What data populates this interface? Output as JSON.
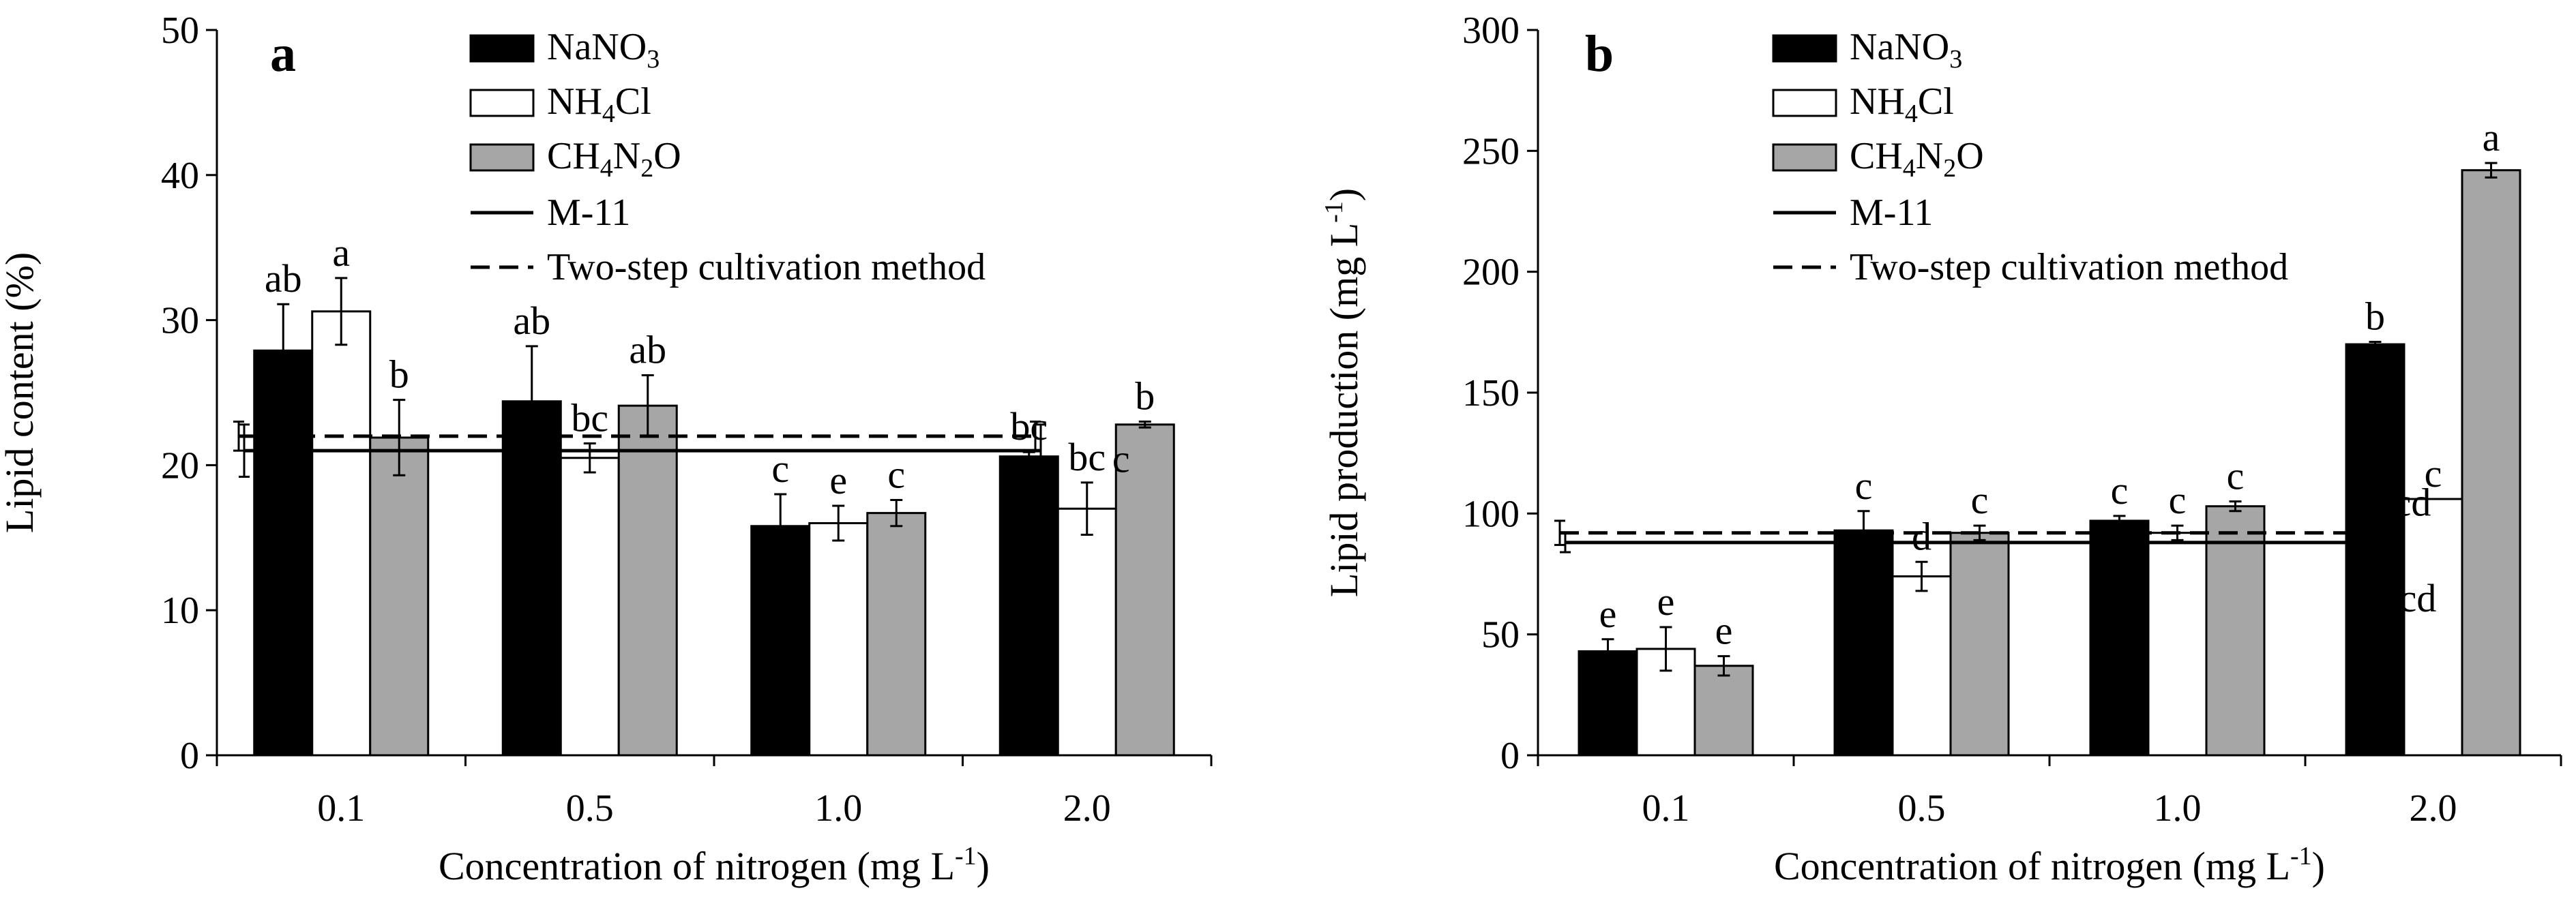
{
  "chart_data": [
    {
      "type": "bar",
      "panel_label": "a",
      "categories": [
        "0.1",
        "0.5",
        "1.0",
        "2.0"
      ],
      "series": [
        {
          "name": "NaNO₃",
          "legend_main": "NaNO",
          "legend_sub": [
            "3"
          ],
          "legend_rest": [
            "",
            ""
          ],
          "color": "#000000",
          "values": [
            27.9,
            24.4,
            15.8,
            20.6
          ],
          "errors": [
            3.2,
            3.8,
            2.2,
            0.3
          ],
          "letters": [
            "ab",
            "ab",
            "c",
            "bc"
          ]
        },
        {
          "name": "NH₄Cl",
          "legend_main": "NH",
          "legend_sub": [
            "4"
          ],
          "legend_rest": [
            "Cl",
            ""
          ],
          "color": "#ffffff",
          "values": [
            30.6,
            20.5,
            16.0,
            17.0
          ],
          "errors": [
            2.3,
            1.0,
            1.2,
            1.8
          ],
          "letters": [
            "a",
            "bc",
            "e",
            "bc"
          ]
        },
        {
          "name": "CH₄N₂O",
          "legend_main": "CH",
          "legend_sub": [
            "4",
            "2"
          ],
          "legend_rest": [
            "N",
            "O"
          ],
          "color": "#a6a6a6",
          "values": [
            21.9,
            24.1,
            16.7,
            22.8
          ],
          "errors": [
            2.6,
            2.1,
            0.9,
            0.2
          ],
          "letters": [
            "b",
            "ab",
            "c",
            "b"
          ]
        }
      ],
      "reference_lines": [
        {
          "name": "M-11",
          "value": 21.0,
          "error": 1.8,
          "style": "solid",
          "letter": ""
        },
        {
          "name": "Two-step cultivation method",
          "value": 22.0,
          "error": 1.0,
          "style": "dashed",
          "letter": ""
        }
      ],
      "extra_labels": [
        "c"
      ],
      "title": "",
      "xlabel_main": "Concentration of nitrogen (mg L",
      "xlabel_sup": "-1",
      "xlabel_end": ")",
      "ylabel_main": "Lipid content (%)",
      "ylabel_sup": "",
      "ylabel_end": "",
      "ylim": [
        0,
        50
      ],
      "yticks": [
        0,
        10,
        20,
        30,
        40,
        50
      ]
    },
    {
      "type": "bar",
      "panel_label": "b",
      "categories": [
        "0.1",
        "0.5",
        "1.0",
        "2.0"
      ],
      "series": [
        {
          "name": "NaNO₃",
          "legend_main": "NaNO",
          "legend_sub": [
            "3"
          ],
          "legend_rest": [
            "",
            ""
          ],
          "color": "#000000",
          "values": [
            43,
            93,
            97,
            170
          ],
          "errors": [
            5,
            8,
            2,
            1
          ],
          "letters": [
            "e",
            "c",
            "c",
            "b"
          ]
        },
        {
          "name": "NH₄Cl",
          "legend_main": "NH",
          "legend_sub": [
            "4"
          ],
          "legend_rest": [
            "Cl",
            ""
          ],
          "color": "#ffffff",
          "values": [
            44,
            74,
            92,
            106
          ],
          "errors": [
            9,
            6,
            3,
            0
          ],
          "letters": [
            "e",
            "d",
            "c",
            "c"
          ]
        },
        {
          "name": "CH₄N₂O",
          "legend_main": "CH",
          "legend_sub": [
            "4",
            "2"
          ],
          "legend_rest": [
            "N",
            "O"
          ],
          "color": "#a6a6a6",
          "values": [
            37,
            92,
            103,
            242
          ],
          "errors": [
            4,
            3,
            2,
            3
          ],
          "letters": [
            "e",
            "c",
            "c",
            "a"
          ]
        }
      ],
      "reference_lines": [
        {
          "name": "M-11",
          "value": 88,
          "error": 4,
          "style": "solid",
          "letter": "cd"
        },
        {
          "name": "Two-step cultivation method",
          "value": 92,
          "error": 5,
          "style": "dashed",
          "letter": "cd"
        }
      ],
      "extra_labels": [],
      "title": "",
      "xlabel_main": "Concentration of nitrogen (mg L",
      "xlabel_sup": "-1",
      "xlabel_end": ")",
      "ylabel_main": "Lipid production (mg L",
      "ylabel_sup": "-1",
      "ylabel_end": ")",
      "ylim": [
        0,
        300
      ],
      "yticks": [
        0,
        50,
        100,
        150,
        200,
        250,
        300
      ]
    }
  ]
}
